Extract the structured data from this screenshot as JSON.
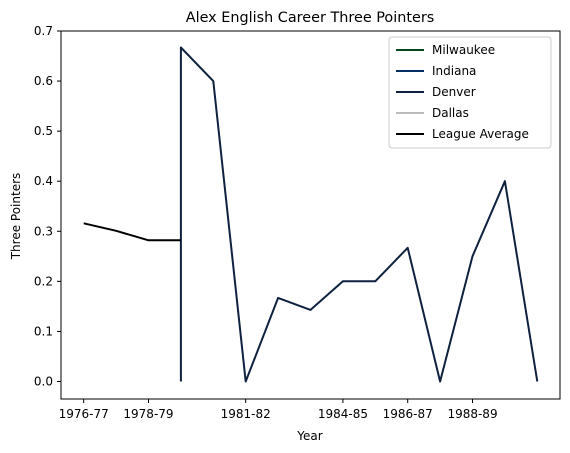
{
  "chart_data": {
    "type": "line",
    "title": "Alex English Career Three Pointers",
    "xlabel": "Year",
    "ylabel": "Three Pointers",
    "x_tick_labels": [
      "1976-77",
      "1978-79",
      "1981-82",
      "1984-85",
      "1986-87",
      "1988-89"
    ],
    "x_tick_positions": [
      0,
      2,
      5,
      8,
      10,
      12
    ],
    "ylim": [
      -0.035,
      0.7
    ],
    "y_ticks": [
      0.0,
      0.1,
      0.2,
      0.3,
      0.4,
      0.5,
      0.6,
      0.7
    ],
    "y_tick_labels": [
      "0.0",
      "0.1",
      "0.2",
      "0.3",
      "0.4",
      "0.5",
      "0.6",
      "0.7"
    ],
    "grid": false,
    "legend_placement": "top-right",
    "series": [
      {
        "name": "Milwaukee",
        "color": "#00471B",
        "points": []
      },
      {
        "name": "Indiana",
        "color": "#002D62",
        "points": []
      },
      {
        "name": "Denver",
        "color": "#0E2240",
        "points": [
          [
            3,
            0.0
          ],
          [
            3,
            0.667
          ],
          [
            4,
            0.6
          ],
          [
            5,
            0.0
          ],
          [
            6,
            0.167
          ],
          [
            7,
            0.143
          ],
          [
            8,
            0.2
          ],
          [
            9,
            0.2
          ],
          [
            10,
            0.267
          ],
          [
            11,
            0.0
          ],
          [
            12,
            0.25
          ],
          [
            13,
            0.4
          ],
          [
            14,
            0.0
          ]
        ]
      },
      {
        "name": "Dallas",
        "color": "#BBBBBB",
        "points": []
      },
      {
        "name": "League Average",
        "color": "#000000",
        "points": [
          [
            0,
            0.316
          ],
          [
            1,
            0.301
          ],
          [
            2,
            0.282
          ],
          [
            3,
            0.282
          ]
        ]
      }
    ]
  }
}
